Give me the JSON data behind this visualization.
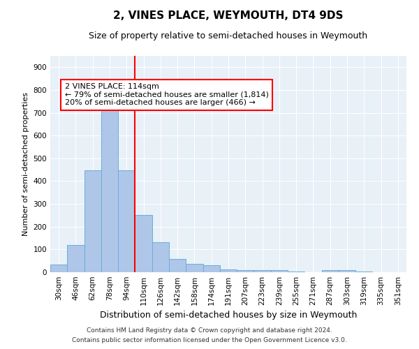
{
  "title": "2, VINES PLACE, WEYMOUTH, DT4 9DS",
  "subtitle": "Size of property relative to semi-detached houses in Weymouth",
  "xlabel": "Distribution of semi-detached houses by size in Weymouth",
  "ylabel": "Number of semi-detached properties",
  "footer1": "Contains HM Land Registry data © Crown copyright and database right 2024.",
  "footer2": "Contains public sector information licensed under the Open Government Licence v3.0.",
  "bar_labels": [
    "30sqm",
    "46sqm",
    "62sqm",
    "78sqm",
    "94sqm",
    "110sqm",
    "126sqm",
    "142sqm",
    "158sqm",
    "174sqm",
    "191sqm",
    "207sqm",
    "223sqm",
    "239sqm",
    "255sqm",
    "271sqm",
    "287sqm",
    "303sqm",
    "319sqm",
    "335sqm",
    "351sqm"
  ],
  "bar_values": [
    35,
    118,
    447,
    710,
    447,
    252,
    133,
    58,
    37,
    30,
    12,
    8,
    8,
    8,
    3,
    1,
    9,
    8,
    2,
    0,
    0
  ],
  "bar_color": "#aec6e8",
  "bar_edge_color": "#6baed6",
  "background_color": "#e8f0f8",
  "vline_x_index": 5,
  "vline_color": "red",
  "annotation_line1": "2 VINES PLACE: 114sqm",
  "annotation_line2": "← 79% of semi-detached houses are smaller (1,814)",
  "annotation_line3": "20% of semi-detached houses are larger (466) →",
  "annotation_box_color": "white",
  "annotation_box_edge_color": "red",
  "ylim": [
    0,
    950
  ],
  "yticks": [
    0,
    100,
    200,
    300,
    400,
    500,
    600,
    700,
    800,
    900
  ],
  "title_fontsize": 11,
  "subtitle_fontsize": 9,
  "xlabel_fontsize": 9,
  "ylabel_fontsize": 8,
  "tick_fontsize": 7.5,
  "annotation_fontsize": 8
}
